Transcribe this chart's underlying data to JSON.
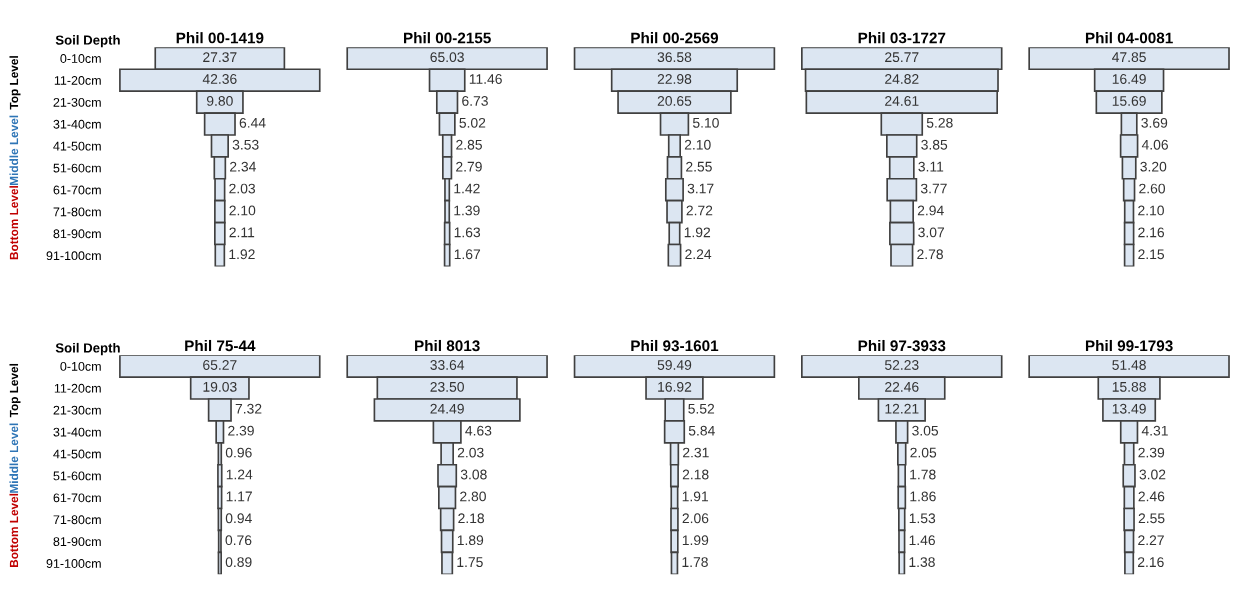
{
  "chart_data": [
    {
      "type": "other",
      "title": "Phil 00-1419",
      "ylabel": "Soil Depth",
      "annotations": [
        "Top Level",
        "Middle Level",
        "Bottom Level"
      ],
      "color": "#dce6f2",
      "categories": [
        "0-10cm",
        "11-20cm",
        "21-30cm",
        "31-40cm",
        "41-50cm",
        "51-60cm",
        "61-70cm",
        "71-80cm",
        "81-90cm",
        "91-100cm"
      ],
      "values": [
        27.37,
        42.36,
        9.8,
        6.44,
        3.53,
        2.34,
        2.03,
        2.1,
        2.11,
        1.92
      ],
      "value_labels": [
        "27.37",
        "42.36",
        "9.80",
        "6.44",
        "3.53",
        "2.34",
        "2.03",
        "2.10",
        "2.11",
        "1.92"
      ]
    },
    {
      "type": "other",
      "title": "Phil 00-2155",
      "color": "#dce6f2",
      "values": [
        65.03,
        11.46,
        6.73,
        5.02,
        2.85,
        2.79,
        1.42,
        1.39,
        1.63,
        1.67
      ],
      "value_labels": [
        "65.03",
        "11.46",
        "6.73",
        "5.02",
        "2.85",
        "2.79",
        "1.42",
        "1.39",
        "1.63",
        "1.67"
      ]
    },
    {
      "type": "other",
      "title": "Phil 00-2569",
      "color": "#dce6f2",
      "values": [
        36.58,
        22.98,
        20.65,
        5.1,
        2.1,
        2.55,
        3.17,
        2.72,
        1.92,
        2.24
      ],
      "value_labels": [
        "36.58",
        "22.98",
        "20.65",
        "5.10",
        "2.10",
        "2.55",
        "3.17",
        "2.72",
        "1.92",
        "2.24"
      ]
    },
    {
      "type": "other",
      "title": "Phil 03-1727",
      "color": "#dce6f2",
      "values": [
        25.77,
        24.82,
        24.61,
        5.28,
        3.85,
        3.11,
        3.77,
        2.94,
        3.07,
        2.78
      ],
      "value_labels": [
        "25.77",
        "24.82",
        "24.61",
        "5.28",
        "3.85",
        "3.11",
        "3.77",
        "2.94",
        "3.07",
        "2.78"
      ]
    },
    {
      "type": "other",
      "title": "Phil 04-0081",
      "color": "#dce6f2",
      "values": [
        47.85,
        16.49,
        15.69,
        3.69,
        4.06,
        3.2,
        2.6,
        2.1,
        2.16,
        2.15
      ],
      "value_labels": [
        "47.85",
        "16.49",
        "15.69",
        "3.69",
        "4.06",
        "3.20",
        "2.60",
        "2.10",
        "2.16",
        "2.15"
      ]
    },
    {
      "type": "other",
      "title": "Phil 75-44",
      "ylabel": "Soil Depth",
      "annotations": [
        "Top Level",
        "Middle Level",
        "Bottom Level"
      ],
      "color": "#dce6f2",
      "categories": [
        "0-10cm",
        "11-20cm",
        "21-30cm",
        "31-40cm",
        "41-50cm",
        "51-60cm",
        "61-70cm",
        "71-80cm",
        "81-90cm",
        "91-100cm"
      ],
      "values": [
        65.27,
        19.03,
        7.32,
        2.39,
        0.96,
        1.24,
        1.17,
        0.94,
        0.76,
        0.89
      ],
      "value_labels": [
        "65.27",
        "19.03",
        "7.32",
        "2.39",
        "0.96",
        "1.24",
        "1.17",
        "0.94",
        "0.76",
        "0.89"
      ]
    },
    {
      "type": "other",
      "title": "Phil 8013",
      "color": "#dce6f2",
      "values": [
        33.64,
        23.5,
        24.49,
        4.63,
        2.03,
        3.08,
        2.8,
        2.18,
        1.89,
        1.75
      ],
      "value_labels": [
        "33.64",
        "23.50",
        "24.49",
        "4.63",
        "2.03",
        "3.08",
        "2.80",
        "2.18",
        "1.89",
        "1.75"
      ]
    },
    {
      "type": "other",
      "title": "Phil 93-1601",
      "color": "#dce6f2",
      "values": [
        59.49,
        16.92,
        5.52,
        5.84,
        2.31,
        2.18,
        1.91,
        2.06,
        1.99,
        1.78
      ],
      "value_labels": [
        "59.49",
        "16.92",
        "5.52",
        "5.84",
        "2.31",
        "2.18",
        "1.91",
        "2.06",
        "1.99",
        "1.78"
      ]
    },
    {
      "type": "other",
      "title": "Phil 97-3933",
      "color": "#dce6f2",
      "values": [
        52.23,
        22.46,
        12.21,
        3.05,
        2.05,
        1.78,
        1.86,
        1.53,
        1.46,
        1.38
      ],
      "value_labels": [
        "52.23",
        "22.46",
        "12.21",
        "3.05",
        "2.05",
        "1.78",
        "1.86",
        "1.53",
        "1.46",
        "1.38"
      ]
    },
    {
      "type": "other",
      "title": "Phil 99-1793",
      "color": "#dce6f2",
      "values": [
        51.48,
        15.88,
        13.49,
        4.31,
        2.39,
        3.02,
        2.46,
        2.55,
        2.27,
        2.16
      ],
      "value_labels": [
        "51.48",
        "15.88",
        "13.49",
        "4.31",
        "2.39",
        "3.02",
        "2.46",
        "2.55",
        "2.27",
        "2.16"
      ]
    }
  ]
}
